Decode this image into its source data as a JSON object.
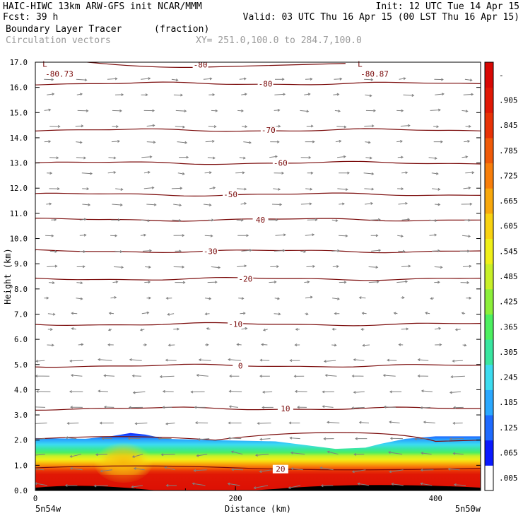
{
  "header": {
    "line1_left": "HAIC-HIWC 13km ARW-GFS init   NCAR/MMM",
    "line1_right": "Init: 12 UTC Tue 14 Apr 15",
    "line2_left": "Fcst:   39 h",
    "line2_right": "Valid: 03 UTC Thu 16 Apr 15 (00 LST Thu 16 Apr 15)",
    "field_name": "Boundary Layer Tracer",
    "field_units": "(fraction)",
    "vector_name": "Circulation vectors",
    "xsec_endpoints": "XY= 251.0,100.0 to 284.7,100.0"
  },
  "colors": {
    "contour": "#7a0a0a",
    "vector": "#808080",
    "colorbar": [
      "#ffffff",
      "#0a1aff",
      "#1e6aff",
      "#2aa8ff",
      "#3cdcf0",
      "#39e6a0",
      "#4cf060",
      "#8cf03a",
      "#c8f028",
      "#f0f018",
      "#f8d210",
      "#f8a80c",
      "#f87e0a",
      "#f05a08",
      "#e83206",
      "#e01805",
      "#d80804"
    ]
  },
  "chart_data": {
    "type": "heatmap",
    "title": "Boundary Layer Tracer",
    "xlabel": "Distance (km)",
    "ylabel": "Height (km)",
    "xlim": [
      0,
      445
    ],
    "ylim": [
      0,
      17
    ],
    "x_ticks": [
      "0",
      "200",
      "400"
    ],
    "y_ticks": [
      "0.0",
      "1.0",
      "2.0",
      "3.0",
      "4.0",
      "5.0",
      "6.0",
      "7.0",
      "8.0",
      "9.0",
      "10.0",
      "11.0",
      "12.0",
      "13.0",
      "14.0",
      "15.0",
      "16.0",
      "17.0"
    ],
    "x_endpoint_labels": [
      "5n54w",
      "5n50w"
    ],
    "colorbar_ticks": [
      "-",
      ".905",
      ".845",
      ".785",
      ".725",
      ".665",
      ".605",
      ".545",
      ".485",
      ".425",
      ".365",
      ".305",
      ".245",
      ".185",
      ".125",
      ".065",
      ".005"
    ],
    "boundary_layer_top_km": [
      [
        0,
        2.08
      ],
      [
        50,
        2.05
      ],
      [
        75,
        2.15
      ],
      [
        95,
        2.28
      ],
      [
        110,
        2.22
      ],
      [
        130,
        2.05
      ],
      [
        180,
        2.0
      ],
      [
        240,
        1.95
      ],
      [
        260,
        1.85
      ],
      [
        300,
        1.65
      ],
      [
        330,
        1.7
      ],
      [
        345,
        1.85
      ],
      [
        370,
        2.05
      ],
      [
        400,
        2.15
      ],
      [
        445,
        2.15
      ]
    ],
    "temperature_contours": [
      {
        "label": "-80",
        "height_km": 16.9,
        "label_x_km": 165
      },
      {
        "label": "-80",
        "height_km": 16.15,
        "label_x_km": 230
      },
      {
        "label": "-70",
        "height_km": 14.3,
        "label_x_km": 233
      },
      {
        "label": "-60",
        "height_km": 13.0,
        "label_x_km": 245
      },
      {
        "label": "-50",
        "height_km": 11.75,
        "label_x_km": 195
      },
      {
        "label": "40",
        "height_km": 10.75,
        "label_x_km": 225
      },
      {
        "label": "-30",
        "height_km": 9.5,
        "label_x_km": 175
      },
      {
        "label": "-20",
        "height_km": 8.4,
        "label_x_km": 210
      },
      {
        "label": "-10",
        "height_km": 6.6,
        "label_x_km": 200
      },
      {
        "label": "0",
        "height_km": 4.95,
        "label_x_km": 205
      },
      {
        "label": "10",
        "height_km": 3.25,
        "label_x_km": 250
      },
      {
        "label": "20",
        "height_km": 0.85,
        "label_x_km": 245
      }
    ],
    "minima_labels": [
      {
        "mark": "L",
        "value": "-80.73",
        "x_km": 10,
        "height_km": 16.6
      },
      {
        "mark": "L",
        "value": "-80.87",
        "x_km": 325,
        "height_km": 16.6
      }
    ],
    "wind_regime": [
      {
        "from_km": 0,
        "to_km": 2.0,
        "direction": "west"
      },
      {
        "from_km": 2.0,
        "to_km": 5.5,
        "direction": "west"
      },
      {
        "from_km": 5.5,
        "to_km": 8.0,
        "direction": "mixed"
      },
      {
        "from_km": 8.0,
        "to_km": 17.0,
        "direction": "east"
      }
    ]
  }
}
